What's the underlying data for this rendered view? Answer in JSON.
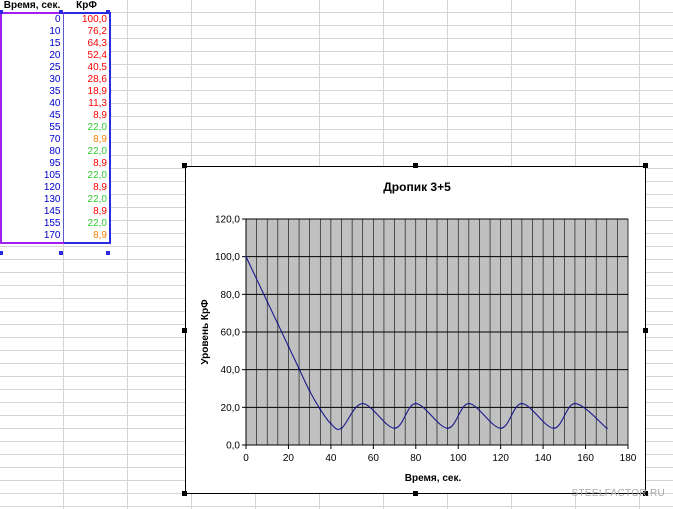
{
  "table": {
    "headers": {
      "time": "Время, сек.",
      "kf": "КрФ"
    },
    "rows": [
      {
        "time": "0",
        "kf": "100,0",
        "color": "#ff0000"
      },
      {
        "time": "10",
        "kf": "76,2",
        "color": "#ff0000"
      },
      {
        "time": "15",
        "kf": "64,3",
        "color": "#ff0000"
      },
      {
        "time": "20",
        "kf": "52,4",
        "color": "#ff0000"
      },
      {
        "time": "25",
        "kf": "40,5",
        "color": "#ff0000"
      },
      {
        "time": "30",
        "kf": "28,6",
        "color": "#ff0000"
      },
      {
        "time": "35",
        "kf": "18,9",
        "color": "#ff0000"
      },
      {
        "time": "40",
        "kf": "11,3",
        "color": "#ff0000"
      },
      {
        "time": "45",
        "kf": "8,9",
        "color": "#ff0000"
      },
      {
        "time": "55",
        "kf": "22,0",
        "color": "#33cc33"
      },
      {
        "time": "70",
        "kf": "8,9",
        "color": "#ff8000"
      },
      {
        "time": "80",
        "kf": "22,0",
        "color": "#33cc33"
      },
      {
        "time": "95",
        "kf": "8,9",
        "color": "#ff0000"
      },
      {
        "time": "105",
        "kf": "22,0",
        "color": "#33cc33"
      },
      {
        "time": "120",
        "kf": "8,9",
        "color": "#ff0000"
      },
      {
        "time": "130",
        "kf": "22,0",
        "color": "#33cc33"
      },
      {
        "time": "145",
        "kf": "8,9",
        "color": "#ff0000"
      },
      {
        "time": "155",
        "kf": "22,0",
        "color": "#33cc33"
      },
      {
        "time": "170",
        "kf": "8,9",
        "color": "#ff8000"
      }
    ]
  },
  "chart_data": {
    "type": "line",
    "title": "Дропик 3+5",
    "xlabel": "Время, сек.",
    "ylabel": "Уровень КрФ",
    "xlim": [
      0,
      180
    ],
    "ylim": [
      0,
      120
    ],
    "x_ticks": [
      "0",
      "20",
      "40",
      "60",
      "80",
      "100",
      "120",
      "140",
      "160",
      "180"
    ],
    "y_ticks": [
      "0,0",
      "20,0",
      "40,0",
      "60,0",
      "80,0",
      "100,0",
      "120,0"
    ],
    "plot_background": "#c0c0c0",
    "grid": true,
    "line_color": "#1a1a8c",
    "series": [
      {
        "x": [
          0,
          10,
          15,
          20,
          25,
          30,
          35,
          40,
          45,
          55,
          70,
          80,
          95,
          105,
          120,
          130,
          145,
          155,
          170
        ],
        "y": [
          100.0,
          76.2,
          64.3,
          52.4,
          40.5,
          28.6,
          18.9,
          11.3,
          8.9,
          22.0,
          8.9,
          22.0,
          8.9,
          22.0,
          8.9,
          22.0,
          8.9,
          22.0,
          8.9
        ]
      }
    ]
  },
  "watermark": "STEELFACTOR.RU"
}
